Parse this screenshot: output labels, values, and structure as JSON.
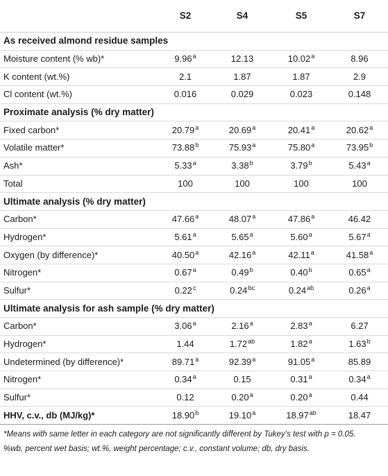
{
  "header": {
    "row_label": "",
    "samples": [
      "S2",
      "S4",
      "S5",
      "S7"
    ]
  },
  "sections": [
    {
      "title": "As received almond residue samples",
      "rows": [
        {
          "label": "Moisture content (% wb)*",
          "values": [
            {
              "v": "9.96",
              "s": "a"
            },
            {
              "v": "12.13",
              "s": ""
            },
            {
              "v": "10.02",
              "s": "a"
            },
            {
              "v": "8.96",
              "s": ""
            }
          ]
        },
        {
          "label": "K content (wt.%)",
          "values": [
            {
              "v": "2.1",
              "s": ""
            },
            {
              "v": "1.87",
              "s": ""
            },
            {
              "v": "1.87",
              "s": ""
            },
            {
              "v": "2.9",
              "s": ""
            }
          ]
        },
        {
          "label": "Cl content (wt.%)",
          "values": [
            {
              "v": "0.016",
              "s": ""
            },
            {
              "v": "0.029",
              "s": ""
            },
            {
              "v": "0.023",
              "s": ""
            },
            {
              "v": "0.148",
              "s": ""
            }
          ]
        }
      ]
    },
    {
      "title": "Proximate analysis (% dry matter)",
      "rows": [
        {
          "label": "Fixed carbon*",
          "values": [
            {
              "v": "20.79",
              "s": "a"
            },
            {
              "v": "20.69",
              "s": "a"
            },
            {
              "v": "20.41",
              "s": "a"
            },
            {
              "v": "20.62",
              "s": "a"
            }
          ]
        },
        {
          "label": "Volatile matter*",
          "values": [
            {
              "v": "73.88",
              "s": "b"
            },
            {
              "v": "75.93",
              "s": "a"
            },
            {
              "v": "75.80",
              "s": "a"
            },
            {
              "v": "73.95",
              "s": "b"
            }
          ]
        },
        {
          "label": "Ash*",
          "values": [
            {
              "v": "5.33",
              "s": "a"
            },
            {
              "v": "3.38",
              "s": "b"
            },
            {
              "v": "3.79",
              "s": "b"
            },
            {
              "v": "5.43",
              "s": "a"
            }
          ]
        },
        {
          "label": "Total",
          "values": [
            {
              "v": "100",
              "s": ""
            },
            {
              "v": "100",
              "s": ""
            },
            {
              "v": "100",
              "s": ""
            },
            {
              "v": "100",
              "s": ""
            }
          ]
        }
      ]
    },
    {
      "title": "Ultimate analysis (% dry matter)",
      "rows": [
        {
          "label": "Carbon*",
          "values": [
            {
              "v": "47.66",
              "s": "a"
            },
            {
              "v": "48.07",
              "s": "a"
            },
            {
              "v": "47.86",
              "s": "a"
            },
            {
              "v": "46.42",
              "s": ""
            }
          ]
        },
        {
          "label": "Hydrogen*",
          "values": [
            {
              "v": "5.61",
              "s": "a"
            },
            {
              "v": "5.65",
              "s": "a"
            },
            {
              "v": "5.60",
              "s": "a"
            },
            {
              "v": "5.67",
              "s": "a"
            }
          ]
        },
        {
          "label": "Oxygen (by difference)*",
          "values": [
            {
              "v": "40.50",
              "s": "a"
            },
            {
              "v": "42.16",
              "s": "a"
            },
            {
              "v": "42.11",
              "s": "a"
            },
            {
              "v": "41.58",
              "s": "a"
            }
          ]
        },
        {
          "label": "Nitrogen*",
          "values": [
            {
              "v": "0.67",
              "s": "a"
            },
            {
              "v": "0.49",
              "s": "b"
            },
            {
              "v": "0.40",
              "s": "b"
            },
            {
              "v": "0.65",
              "s": "a"
            }
          ]
        },
        {
          "label": "Sulfur*",
          "values": [
            {
              "v": "0.22",
              "s": "c"
            },
            {
              "v": "0.24",
              "s": "bc"
            },
            {
              "v": "0.24",
              "s": "ab"
            },
            {
              "v": "0.26",
              "s": "a"
            }
          ]
        }
      ]
    },
    {
      "title": "Ultimate analysis for ash sample (% dry matter)",
      "rows": [
        {
          "label": "Carbon*",
          "values": [
            {
              "v": "3.06",
              "s": "a"
            },
            {
              "v": "2.16",
              "s": "a"
            },
            {
              "v": "2.83",
              "s": "a"
            },
            {
              "v": "6.27",
              "s": ""
            }
          ]
        },
        {
          "label": "Hydrogen*",
          "values": [
            {
              "v": "1.44",
              "s": ""
            },
            {
              "v": "1.72",
              "s": "ab"
            },
            {
              "v": "1.82",
              "s": "a"
            },
            {
              "v": "1.63",
              "s": "b"
            }
          ]
        },
        {
          "label": "Undetermined (by difference)*",
          "values": [
            {
              "v": "89.71",
              "s": "a"
            },
            {
              "v": "92.39",
              "s": "a"
            },
            {
              "v": "91.05",
              "s": "a"
            },
            {
              "v": "85.89",
              "s": ""
            }
          ]
        },
        {
          "label": "Nitrogen*",
          "values": [
            {
              "v": "0.34",
              "s": "a"
            },
            {
              "v": "0.15",
              "s": ""
            },
            {
              "v": "0.31",
              "s": "a"
            },
            {
              "v": "0.34",
              "s": "a"
            }
          ]
        },
        {
          "label": "Sulfur*",
          "values": [
            {
              "v": "0.12",
              "s": ""
            },
            {
              "v": "0.20",
              "s": "a"
            },
            {
              "v": "0.20",
              "s": "a"
            },
            {
              "v": "0.44",
              "s": ""
            }
          ]
        }
      ]
    }
  ],
  "final_row": {
    "label": "HHV, c.v., db (MJ/kg)*",
    "values": [
      {
        "v": "18.90",
        "s": "b"
      },
      {
        "v": "19.10",
        "s": "a"
      },
      {
        "v": "18.97",
        "s": "ab"
      },
      {
        "v": "18.47",
        "s": ""
      }
    ]
  },
  "notes": {
    "significance": "*Means with same letter in each category are not significantly different by Tukey’s test with p = 0.05.",
    "abbreviations": "%wb, percent wet basis; wt.%, weight percentage; c.v., constant volume; db, dry basis."
  }
}
